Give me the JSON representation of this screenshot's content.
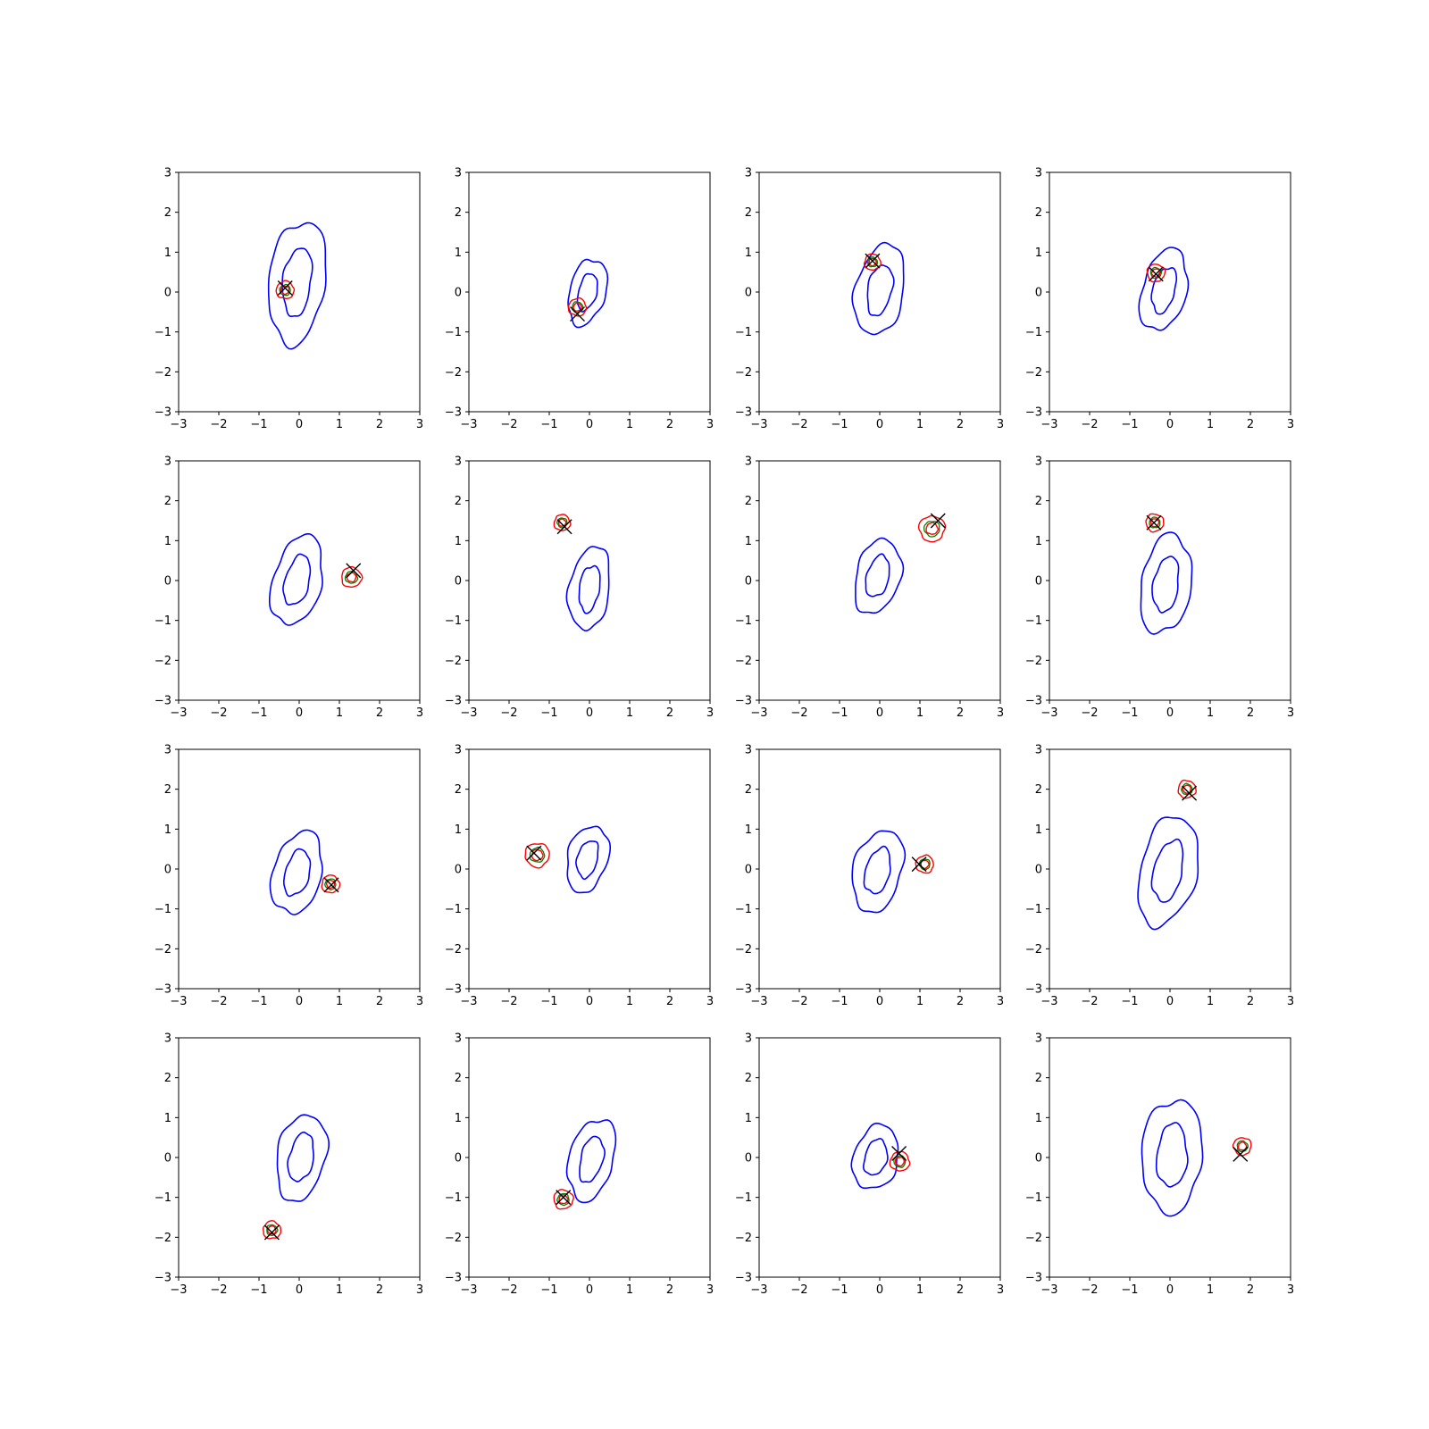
{
  "figure": {
    "layout": "4x4 grid of contour subplots",
    "colors": {
      "outer_density": "#0000ff",
      "inner_density": "#ff0000",
      "inner_core": "#008000",
      "true_point": "#000000"
    },
    "legend": "none"
  },
  "chart_data": [
    {
      "type": "contour",
      "xlim": [
        -3,
        3
      ],
      "ylim": [
        -3,
        3
      ],
      "grid": false,
      "x_ticks": [
        "−3",
        "−2",
        "−1",
        "0",
        "1",
        "2",
        "3"
      ],
      "y_ticks": [
        "−3",
        "−2",
        "−1",
        "0",
        "1",
        "2",
        "3"
      ],
      "blue": {
        "cx": -0.05,
        "cy": 0.25,
        "rx": 0.7,
        "ry": 1.55,
        "tilt": 0.12
      },
      "posterior": {
        "x": -0.35,
        "y": 0.05,
        "r": 0.22
      },
      "marker_x": {
        "x": -0.35,
        "y": 0.1
      }
    },
    {
      "type": "contour",
      "xlim": [
        -3,
        3
      ],
      "ylim": [
        -3,
        3
      ],
      "grid": false,
      "x_ticks": [
        "−3",
        "−2",
        "−1",
        "0",
        "1",
        "2",
        "3"
      ],
      "y_ticks": [
        "−3",
        "−2",
        "−1",
        "0",
        "1",
        "2",
        "3"
      ],
      "blue": {
        "cx": -0.05,
        "cy": 0.0,
        "rx": 0.45,
        "ry": 0.85,
        "tilt": 0.25
      },
      "posterior": {
        "x": -0.3,
        "y": -0.38,
        "r": 0.22
      },
      "marker_x": {
        "x": -0.3,
        "y": -0.55
      }
    },
    {
      "type": "contour",
      "xlim": [
        -3,
        3
      ],
      "ylim": [
        -3,
        3
      ],
      "grid": false,
      "x_ticks": [
        "−3",
        "−2",
        "−1",
        "0",
        "1",
        "2",
        "3"
      ],
      "y_ticks": [
        "−3",
        "−2",
        "−1",
        "0",
        "1",
        "2",
        "3"
      ],
      "blue": {
        "cx": 0.0,
        "cy": 0.05,
        "rx": 0.6,
        "ry": 1.15,
        "tilt": 0.2
      },
      "posterior": {
        "x": -0.18,
        "y": 0.75,
        "r": 0.2
      },
      "marker_x": {
        "x": -0.18,
        "y": 0.78
      }
    },
    {
      "type": "contour",
      "xlim": [
        -3,
        3
      ],
      "ylim": [
        -3,
        3
      ],
      "grid": false,
      "x_ticks": [
        "−3",
        "−2",
        "−1",
        "0",
        "1",
        "2",
        "3"
      ],
      "y_ticks": [
        "−3",
        "−2",
        "−1",
        "0",
        "1",
        "2",
        "3"
      ],
      "blue": {
        "cx": -0.15,
        "cy": 0.05,
        "rx": 0.55,
        "ry": 1.05,
        "tilt": 0.25
      },
      "posterior": {
        "x": -0.35,
        "y": 0.48,
        "r": 0.22
      },
      "marker_x": {
        "x": -0.35,
        "y": 0.45
      }
    },
    {
      "type": "contour",
      "xlim": [
        -3,
        3
      ],
      "ylim": [
        -3,
        3
      ],
      "grid": false,
      "x_ticks": [
        "−3",
        "−2",
        "−1",
        "0",
        "1",
        "2",
        "3"
      ],
      "y_ticks": [
        "−3",
        "−2",
        "−1",
        "0",
        "1",
        "2",
        "3"
      ],
      "blue": {
        "cx": -0.05,
        "cy": 0.0,
        "rx": 0.6,
        "ry": 1.15,
        "tilt": 0.25
      },
      "posterior": {
        "x": 1.3,
        "y": 0.08,
        "r": 0.25
      },
      "marker_x": {
        "x": 1.35,
        "y": 0.25
      }
    },
    {
      "type": "contour",
      "xlim": [
        -3,
        3
      ],
      "ylim": [
        -3,
        3
      ],
      "grid": false,
      "x_ticks": [
        "−3",
        "−2",
        "−1",
        "0",
        "1",
        "2",
        "3"
      ],
      "y_ticks": [
        "−3",
        "−2",
        "−1",
        "0",
        "1",
        "2",
        "3"
      ],
      "blue": {
        "cx": 0.0,
        "cy": -0.2,
        "rx": 0.5,
        "ry": 1.05,
        "tilt": 0.15
      },
      "posterior": {
        "x": -0.68,
        "y": 1.45,
        "r": 0.2
      },
      "marker_x": {
        "x": -0.62,
        "y": 1.35
      }
    },
    {
      "type": "contour",
      "xlim": [
        -3,
        3
      ],
      "ylim": [
        -3,
        3
      ],
      "grid": false,
      "x_ticks": [
        "−3",
        "−2",
        "−1",
        "0",
        "1",
        "2",
        "3"
      ],
      "y_ticks": [
        "−3",
        "−2",
        "−1",
        "0",
        "1",
        "2",
        "3"
      ],
      "blue": {
        "cx": -0.05,
        "cy": 0.1,
        "rx": 0.55,
        "ry": 0.95,
        "tilt": 0.25
      },
      "posterior": {
        "x": 1.3,
        "y": 1.3,
        "r": 0.32
      },
      "marker_x": {
        "x": 1.45,
        "y": 1.5
      }
    },
    {
      "type": "contour",
      "xlim": [
        -3,
        3
      ],
      "ylim": [
        -3,
        3
      ],
      "grid": false,
      "x_ticks": [
        "−3",
        "−2",
        "−1",
        "0",
        "1",
        "2",
        "3"
      ],
      "y_ticks": [
        "−3",
        "−2",
        "−1",
        "0",
        "1",
        "2",
        "3"
      ],
      "blue": {
        "cx": -0.1,
        "cy": -0.1,
        "rx": 0.62,
        "ry": 1.25,
        "tilt": 0.15
      },
      "posterior": {
        "x": -0.38,
        "y": 1.45,
        "r": 0.22
      },
      "marker_x": {
        "x": -0.4,
        "y": 1.45
      }
    },
    {
      "type": "contour",
      "xlim": [
        -3,
        3
      ],
      "ylim": [
        -3,
        3
      ],
      "grid": false,
      "x_ticks": [
        "−3",
        "−2",
        "−1",
        "0",
        "1",
        "2",
        "3"
      ],
      "y_ticks": [
        "−3",
        "−2",
        "−1",
        "0",
        "1",
        "2",
        "3"
      ],
      "blue": {
        "cx": -0.05,
        "cy": -0.1,
        "rx": 0.6,
        "ry": 1.05,
        "tilt": 0.25
      },
      "posterior": {
        "x": 0.78,
        "y": -0.38,
        "r": 0.22
      },
      "marker_x": {
        "x": 0.8,
        "y": -0.4
      }
    },
    {
      "type": "contour",
      "xlim": [
        -3,
        3
      ],
      "ylim": [
        -3,
        3
      ],
      "grid": false,
      "x_ticks": [
        "−3",
        "−2",
        "−1",
        "0",
        "1",
        "2",
        "3"
      ],
      "y_ticks": [
        "−3",
        "−2",
        "−1",
        "0",
        "1",
        "2",
        "3"
      ],
      "blue": {
        "cx": -0.05,
        "cy": 0.25,
        "rx": 0.5,
        "ry": 0.85,
        "tilt": 0.25
      },
      "posterior": {
        "x": -1.3,
        "y": 0.35,
        "r": 0.3
      },
      "marker_x": {
        "x": -1.38,
        "y": 0.4
      }
    },
    {
      "type": "contour",
      "xlim": [
        -3,
        3
      ],
      "ylim": [
        -3,
        3
      ],
      "grid": false,
      "x_ticks": [
        "−3",
        "−2",
        "−1",
        "0",
        "1",
        "2",
        "3"
      ],
      "y_ticks": [
        "−3",
        "−2",
        "−1",
        "0",
        "1",
        "2",
        "3"
      ],
      "blue": {
        "cx": -0.05,
        "cy": -0.05,
        "rx": 0.6,
        "ry": 1.05,
        "tilt": 0.25
      },
      "posterior": {
        "x": 1.12,
        "y": 0.12,
        "r": 0.22
      },
      "marker_x": {
        "x": 0.98,
        "y": 0.12
      }
    },
    {
      "type": "contour",
      "xlim": [
        -3,
        3
      ],
      "ylim": [
        -3,
        3
      ],
      "grid": false,
      "x_ticks": [
        "−3",
        "−2",
        "−1",
        "0",
        "1",
        "2",
        "3"
      ],
      "y_ticks": [
        "−3",
        "−2",
        "−1",
        "0",
        "1",
        "2",
        "3"
      ],
      "blue": {
        "cx": -0.05,
        "cy": -0.05,
        "rx": 0.7,
        "ry": 1.4,
        "tilt": 0.22
      },
      "posterior": {
        "x": 0.42,
        "y": 2.0,
        "r": 0.22
      },
      "marker_x": {
        "x": 0.48,
        "y": 1.9
      }
    },
    {
      "type": "contour",
      "xlim": [
        -3,
        3
      ],
      "ylim": [
        -3,
        3
      ],
      "grid": false,
      "x_ticks": [
        "−3",
        "−2",
        "−1",
        "0",
        "1",
        "2",
        "3"
      ],
      "y_ticks": [
        "−3",
        "−2",
        "−1",
        "0",
        "1",
        "2",
        "3"
      ],
      "blue": {
        "cx": 0.05,
        "cy": 0.0,
        "rx": 0.6,
        "ry": 1.1,
        "tilt": 0.2
      },
      "posterior": {
        "x": -0.68,
        "y": -1.82,
        "r": 0.22
      },
      "marker_x": {
        "x": -0.68,
        "y": -1.88
      }
    },
    {
      "type": "contour",
      "xlim": [
        -3,
        3
      ],
      "ylim": [
        -3,
        3
      ],
      "grid": false,
      "x_ticks": [
        "−3",
        "−2",
        "−1",
        "0",
        "1",
        "2",
        "3"
      ],
      "y_ticks": [
        "−3",
        "−2",
        "−1",
        "0",
        "1",
        "2",
        "3"
      ],
      "blue": {
        "cx": 0.05,
        "cy": -0.05,
        "rx": 0.55,
        "ry": 1.05,
        "tilt": 0.25
      },
      "posterior": {
        "x": -0.65,
        "y": -1.05,
        "r": 0.24
      },
      "marker_x": {
        "x": -0.65,
        "y": -1.0
      }
    },
    {
      "type": "contour",
      "xlim": [
        -3,
        3
      ],
      "ylim": [
        -3,
        3
      ],
      "grid": false,
      "x_ticks": [
        "−3",
        "−2",
        "−1",
        "0",
        "1",
        "2",
        "3"
      ],
      "y_ticks": [
        "−3",
        "−2",
        "−1",
        "0",
        "1",
        "2",
        "3"
      ],
      "blue": {
        "cx": -0.1,
        "cy": 0.0,
        "rx": 0.55,
        "ry": 0.82,
        "tilt": 0.25
      },
      "posterior": {
        "x": 0.5,
        "y": -0.1,
        "r": 0.24
      },
      "marker_x": {
        "x": 0.48,
        "y": 0.1
      }
    },
    {
      "type": "contour",
      "xlim": [
        -3,
        3
      ],
      "ylim": [
        -3,
        3
      ],
      "grid": false,
      "x_ticks": [
        "−3",
        "−2",
        "−1",
        "0",
        "1",
        "2",
        "3"
      ],
      "y_ticks": [
        "−3",
        "−2",
        "−1",
        "0",
        "1",
        "2",
        "3"
      ],
      "blue": {
        "cx": 0.05,
        "cy": 0.05,
        "rx": 0.75,
        "ry": 1.42,
        "tilt": 0.06
      },
      "posterior": {
        "x": 1.8,
        "y": 0.28,
        "r": 0.22
      },
      "marker_x": {
        "x": 1.75,
        "y": 0.08
      }
    }
  ]
}
